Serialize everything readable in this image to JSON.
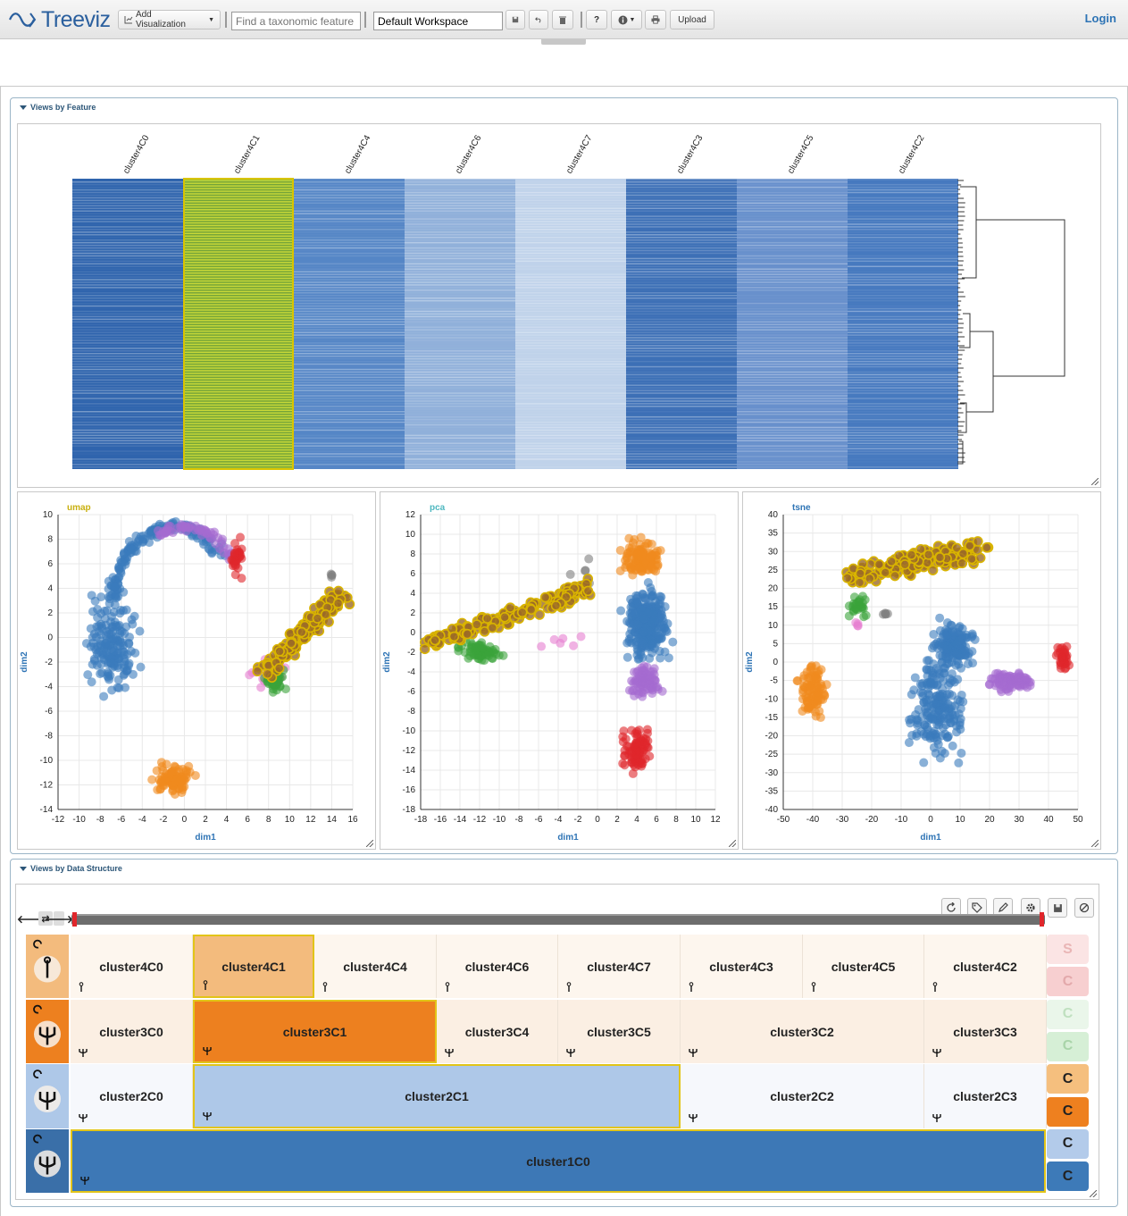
{
  "app": {
    "logo_text": "Treeviz"
  },
  "toolbar": {
    "add_visualization_label": "Add Visualization",
    "search_placeholder": "Find a taxonomic feature",
    "workspace_value": "Default Workspace",
    "help_label": "?",
    "upload_label": "Upload",
    "login_label": "Login"
  },
  "panels": {
    "features_title": "Views by Feature",
    "structure_title": "Views by Data Structure"
  },
  "heatmap": {
    "columns": [
      "cluster4C0",
      "cluster4C1",
      "cluster4C4",
      "cluster4C6",
      "cluster4C7",
      "cluster4C3",
      "cluster4C5",
      "cluster4C2"
    ],
    "column_shades": [
      "#2f64ad",
      "#c7d838",
      "#5586c6",
      "#90b0da",
      "#bfd2ea",
      "#3c6fb6",
      "#6890cc",
      "#4679bf"
    ],
    "selected_column": "cluster4C1"
  },
  "scatter_plots": [
    {
      "title": "umap",
      "title_color": "#c9b010",
      "xlabel": "dim1",
      "ylabel": "dim2",
      "xticks": [
        -12,
        -10,
        -8,
        -6,
        -4,
        -2,
        0,
        2,
        4,
        6,
        8,
        10,
        12,
        14,
        16
      ],
      "yticks": [
        10,
        8,
        6,
        4,
        2,
        0,
        -2,
        -4,
        -6,
        -8,
        -10,
        -12,
        -14
      ],
      "xlim": [
        -12,
        16
      ],
      "ylim": [
        -14,
        10
      ]
    },
    {
      "title": "pca",
      "title_color": "#4fb8c0",
      "xlabel": "dim1",
      "ylabel": "dim2",
      "xticks": [
        -18,
        -16,
        -14,
        -12,
        -10,
        -8,
        -6,
        -4,
        -2,
        0,
        2,
        4,
        6,
        8,
        10,
        12
      ],
      "yticks": [
        12,
        10,
        8,
        6,
        4,
        2,
        0,
        -2,
        -4,
        -6,
        -8,
        -10,
        -12,
        -14,
        -16,
        -18
      ],
      "xlim": [
        -18,
        12
      ],
      "ylim": [
        -18,
        12
      ]
    },
    {
      "title": "tsne",
      "title_color": "#2e74b5",
      "xlabel": "dim1",
      "ylabel": "dim2",
      "xticks": [
        -50,
        -40,
        -30,
        -20,
        -10,
        0,
        10,
        20,
        30,
        40,
        50
      ],
      "yticks": [
        40,
        35,
        30,
        25,
        20,
        15,
        10,
        5,
        0,
        -5,
        -10,
        -15,
        -20,
        -25,
        -30,
        -35,
        -40
      ],
      "xlim": [
        -50,
        50
      ],
      "ylim": [
        -40,
        40
      ]
    }
  ],
  "colors": {
    "blue": "#3a7bbd",
    "orange": "#f08a1e",
    "green": "#3aa33a",
    "purple": "#a56bd0",
    "red": "#e0262b",
    "pink": "#e67ed0",
    "gray": "#7f7f7f",
    "highlight": "#d9b400"
  },
  "hierarchy": {
    "levels": [
      {
        "icon": "level4-icon",
        "cells": [
          "cluster4C0",
          "cluster4C1",
          "cluster4C4",
          "cluster4C6",
          "cluster4C7",
          "cluster4C3",
          "cluster4C5",
          "cluster4C2"
        ],
        "selected": "cluster4C1"
      },
      {
        "icon": "level3-icon",
        "cells": [
          "cluster3C0",
          "cluster3C1",
          "cluster3C4",
          "cluster3C5",
          "cluster3C2",
          "cluster3C3"
        ],
        "selected": "cluster3C1"
      },
      {
        "icon": "level2-icon",
        "cells": [
          "cluster2C0",
          "cluster2C1",
          "cluster2C2",
          "cluster2C3"
        ],
        "selected": "cluster2C1"
      },
      {
        "icon": "level1-icon",
        "cells": [
          "cluster1C0"
        ],
        "selected": "cluster1C0"
      }
    ],
    "side_buttons": [
      "S",
      "C",
      "C",
      "C",
      "C",
      "C",
      "C",
      "C"
    ]
  }
}
